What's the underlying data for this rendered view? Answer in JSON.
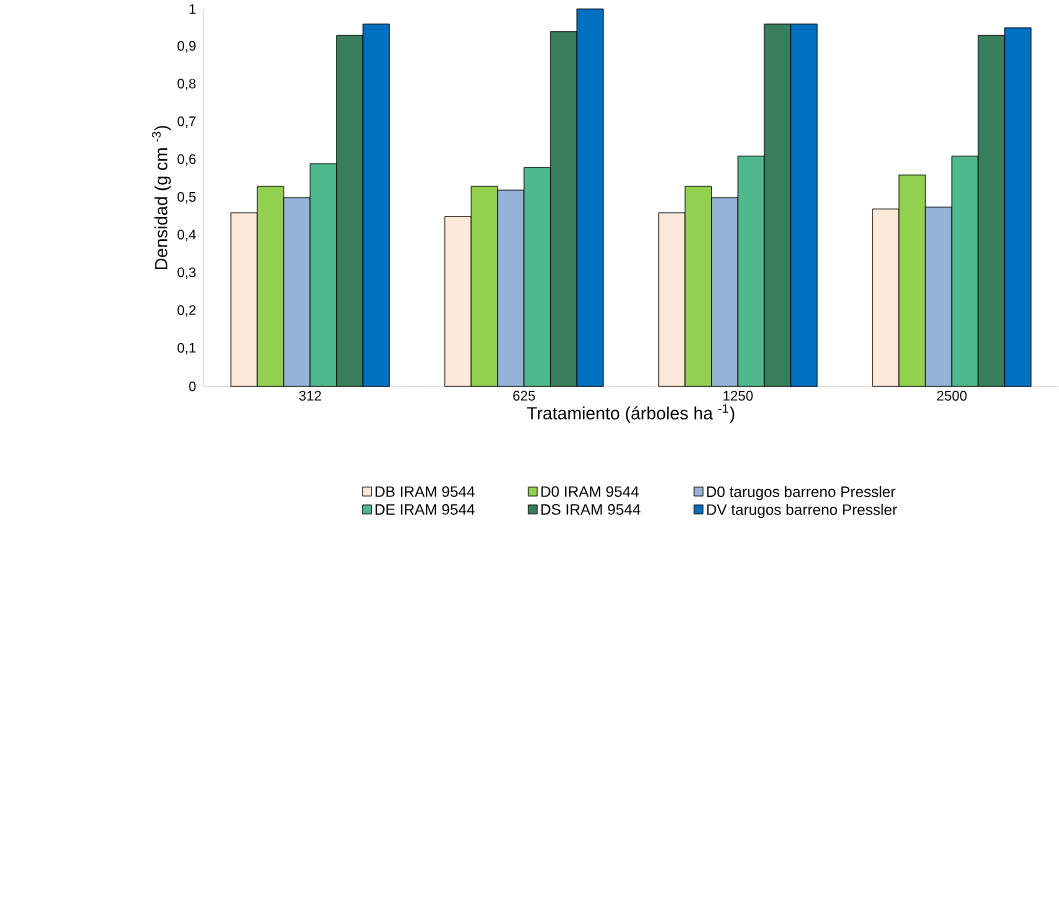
{
  "chart_data": {
    "type": "bar",
    "xlabel": "Tratamiento  (árboles ha $^{-1}$)",
    "ylabel": "Densidad (g cm $^{-3}$)",
    "categories": [
      "312",
      "625",
      "1250",
      "2500"
    ],
    "series": [
      {
        "name": "DB IRAM 9544",
        "color": "#fde9d9",
        "values": [
          0.46,
          0.45,
          0.46,
          0.47
        ]
      },
      {
        "name": "D0 IRAM 9544",
        "color": "#92d050",
        "values": [
          0.53,
          0.53,
          0.53,
          0.56
        ]
      },
      {
        "name": "D0 tarugos barreno Pressler",
        "color": "#95b3d7",
        "values": [
          0.5,
          0.52,
          0.5,
          0.475
        ]
      },
      {
        "name": "DE IRAM 9544",
        "color": "#50b88e",
        "values": [
          0.59,
          0.58,
          0.61,
          0.61
        ]
      },
      {
        "name": "DS IRAM 9544",
        "color": "#387e5c",
        "values": [
          0.93,
          0.94,
          0.96,
          0.93
        ]
      },
      {
        "name": "DV tarugos barreno Pressler",
        "color": "#0070c0",
        "values": [
          0.96,
          1.0,
          0.96,
          0.95
        ]
      }
    ],
    "ylim": [
      0,
      1
    ],
    "yticks": [
      {
        "value": 0,
        "label": "0"
      },
      {
        "value": 0.1,
        "label": "0,1"
      },
      {
        "value": 0.2,
        "label": "0,2"
      },
      {
        "value": 0.3,
        "label": "0,3"
      },
      {
        "value": 0.4,
        "label": "0,4"
      },
      {
        "value": 0.5,
        "label": "0,5"
      },
      {
        "value": 0.6,
        "label": "0,6"
      },
      {
        "value": 0.7,
        "label": "0,7"
      },
      {
        "value": 0.8,
        "label": "0,8"
      },
      {
        "value": 0.9,
        "label": "0,9"
      },
      {
        "value": 1,
        "label": "1"
      }
    ],
    "legend": "bottom"
  }
}
